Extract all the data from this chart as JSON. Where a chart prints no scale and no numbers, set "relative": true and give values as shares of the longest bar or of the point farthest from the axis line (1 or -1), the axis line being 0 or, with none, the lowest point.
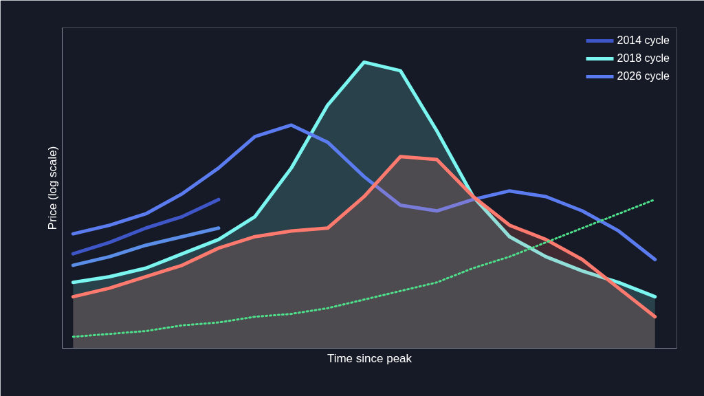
{
  "chart_data": {
    "type": "line",
    "relative": true,
    "xlabel": "Time since peak",
    "ylabel": "Price (log scale)",
    "categories": [
      null,
      null,
      null,
      null,
      null,
      null,
      null,
      null,
      null,
      null,
      null,
      null,
      null,
      null,
      null,
      null,
      null
    ],
    "legend": "top right",
    "series": [
      {
        "name": "2014 cycle",
        "color": "#3f56c8",
        "values": [
          0.33,
          0.37,
          0.42,
          0.46,
          0.52,
          null,
          null,
          null,
          null,
          null,
          null,
          null,
          null,
          null,
          null,
          null,
          null
        ]
      },
      {
        "name": "2018 cycle",
        "type": "area",
        "color": "#7af5f0",
        "values": [
          0.23,
          0.25,
          0.28,
          0.33,
          0.38,
          0.46,
          0.63,
          0.85,
          1.0,
          0.97,
          0.76,
          0.53,
          0.39,
          0.32,
          0.27,
          0.23,
          0.18
        ]
      },
      {
        "name": "2026 cycle",
        "color": "#5b7cf0",
        "values": [
          0.4,
          0.43,
          0.47,
          0.54,
          0.63,
          0.74,
          0.78,
          0.72,
          0.6,
          0.5,
          0.48,
          0.52,
          0.55,
          0.53,
          0.48,
          0.41,
          0.31
        ]
      },
      {
        "color": "#5a8ee8",
        "values": [
          0.29,
          0.32,
          0.36,
          0.39,
          0.42,
          null,
          null,
          null,
          null,
          null,
          null,
          null,
          null,
          null,
          null,
          null,
          null
        ]
      },
      {
        "type": "area",
        "color": "#ff7a6e",
        "values": [
          0.18,
          0.21,
          0.25,
          0.29,
          0.35,
          0.39,
          0.41,
          0.42,
          0.53,
          0.67,
          0.66,
          0.53,
          0.43,
          0.38,
          0.31,
          0.21,
          0.11
        ]
      },
      {
        "color": "#4ee08a",
        "line_style": "dotted",
        "values": [
          0.04,
          0.05,
          0.06,
          0.08,
          0.09,
          0.11,
          0.12,
          0.14,
          0.17,
          0.2,
          0.23,
          0.28,
          0.32,
          0.37,
          0.42,
          0.47,
          0.52
        ]
      }
    ]
  }
}
